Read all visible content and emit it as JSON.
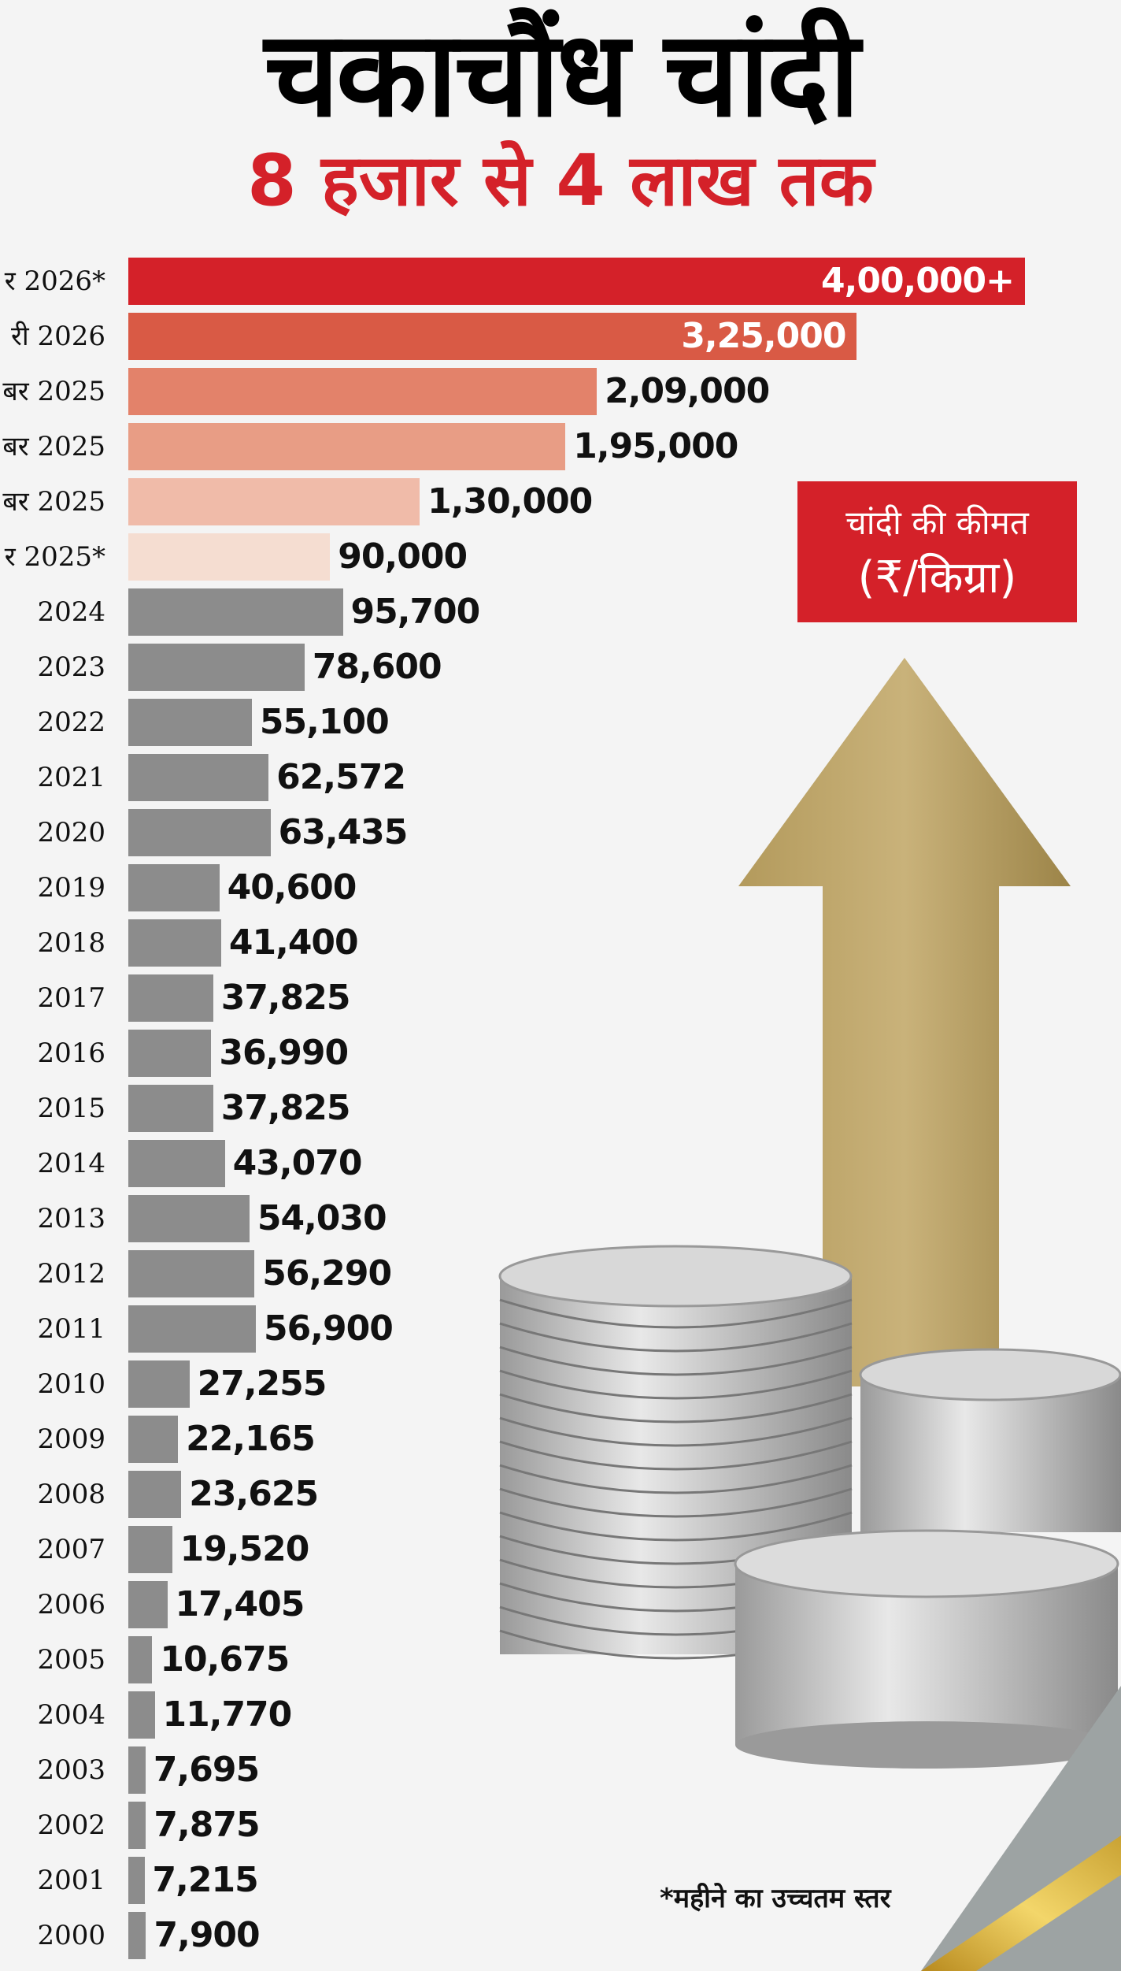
{
  "title": "चकाचौंध चांदी",
  "subtitle": "8 हजार से 4 लाख तक",
  "legend": {
    "line1": "चांदी की कीमत",
    "line2": "(₹/किग्रा)"
  },
  "footnote": "*महीने का उच्चतम स्तर",
  "colors": {
    "title": "#000000",
    "accent": "#d42129",
    "gray_bar": "#8c8c8c"
  },
  "chart_data": {
    "type": "bar",
    "orientation": "horizontal",
    "title": "चकाचौंध चांदी",
    "subtitle": "8 हजार से 4 लाख तक",
    "unit": "₹/किग्रा",
    "xlim": [
      0,
      400000
    ],
    "grid": false,
    "categories": [
      "र 2026*",
      "री 2026",
      "बर 2025",
      "बर 2025",
      "बर 2025",
      "र 2025*",
      "2024",
      "2023",
      "2022",
      "2021",
      "2020",
      "2019",
      "2018",
      "2017",
      "2016",
      "2015",
      "2014",
      "2013",
      "2012",
      "2011",
      "2010",
      "2009",
      "2008",
      "2007",
      "2006",
      "2005",
      "2004",
      "2003",
      "2002",
      "2001",
      "2000"
    ],
    "values": [
      400000,
      325000,
      209000,
      195000,
      130000,
      90000,
      95700,
      78600,
      55100,
      62572,
      63435,
      40600,
      41400,
      37825,
      36990,
      37825,
      43070,
      54030,
      56290,
      56900,
      27255,
      22165,
      23625,
      19520,
      17405,
      10675,
      11770,
      7695,
      7875,
      7215,
      7900
    ],
    "value_labels": [
      "4,00,000+",
      "3,25,000",
      "2,09,000",
      "1,95,000",
      "1,30,000",
      "90,000",
      "95,700",
      "78,600",
      "55,100",
      "62,572",
      "63,435",
      "40,600",
      "41,400",
      "37,825",
      "36,990",
      "37,825",
      "43,070",
      "54,030",
      "56,290",
      "56,900",
      "27,255",
      "22,165",
      "23,625",
      "19,520",
      "17,405",
      "10,675",
      "11,770",
      "7,695",
      "7,875",
      "7,215",
      "7,900"
    ],
    "bar_colors": [
      "#d42129",
      "#d95a45",
      "#e3826a",
      "#e89d85",
      "#f0bba9",
      "#f5ddd1",
      "#8c8c8c"
    ]
  }
}
